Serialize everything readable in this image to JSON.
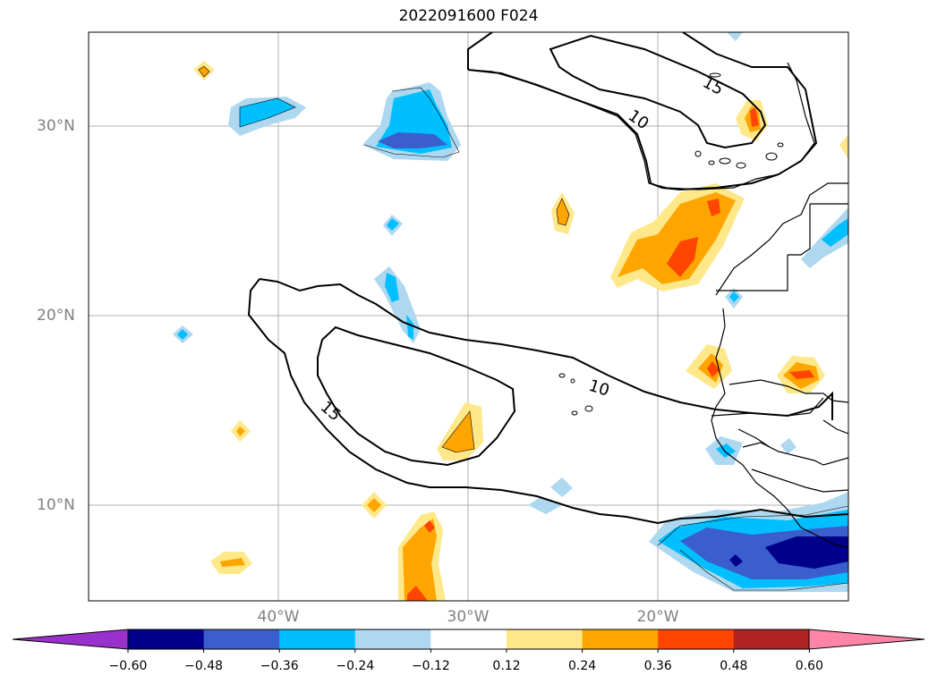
{
  "title": "2022091600 F024",
  "map": {
    "lat_labels": [
      "30°N",
      "20°N",
      "10°N"
    ],
    "lon_labels": [
      "40°W",
      "30°W",
      "20°W"
    ],
    "contour_labels": [
      "15",
      "10",
      "10",
      "15"
    ],
    "grid": true
  },
  "colorbar": {
    "ticks": [
      "−0.60",
      "−0.48",
      "−0.36",
      "−0.24",
      "−0.12",
      "0.12",
      "0.24",
      "0.36",
      "0.48",
      "0.60"
    ],
    "colors": [
      "#9932cc",
      "#00008b",
      "#3a5fcd",
      "#00bfff",
      "#add8f0",
      "#ffffff",
      "#ffe88a",
      "#ffa500",
      "#ff4500",
      "#b22222",
      "#ff85a8"
    ],
    "extend": "both"
  }
}
